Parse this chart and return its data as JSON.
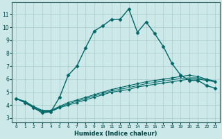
{
  "title": "",
  "xlabel": "Humidex (Indice chaleur)",
  "ylabel": "",
  "background_color": "#cce8e8",
  "grid_color": "#aacccc",
  "line_color": "#006666",
  "x_ticks": [
    0,
    1,
    2,
    3,
    4,
    5,
    6,
    7,
    8,
    9,
    10,
    11,
    12,
    13,
    14,
    15,
    16,
    17,
    18,
    19,
    20,
    21,
    22,
    23
  ],
  "y_ticks": [
    3,
    4,
    5,
    6,
    7,
    8,
    9,
    10,
    11
  ],
  "ylim": [
    2.7,
    11.9
  ],
  "xlim": [
    -0.5,
    23.5
  ],
  "series": [
    {
      "x": [
        0,
        1,
        2,
        3,
        4,
        5,
        6,
        7,
        8,
        9,
        10,
        11,
        12,
        13,
        14,
        15,
        16,
        17,
        18,
        19,
        20,
        21,
        22,
        23
      ],
      "y": [
        4.5,
        4.2,
        3.8,
        3.4,
        3.5,
        4.6,
        6.3,
        7.0,
        8.4,
        9.7,
        10.1,
        10.6,
        10.6,
        11.4,
        9.6,
        10.4,
        9.5,
        8.5,
        7.2,
        6.3,
        5.9,
        5.9,
        5.5,
        5.3
      ],
      "marker": "D",
      "markersize": 2.5,
      "linewidth": 1.0,
      "linestyle": "solid"
    },
    {
      "x": [
        0,
        1,
        2,
        3,
        4,
        5,
        6,
        7,
        8,
        9,
        10,
        11,
        12,
        13,
        14,
        15,
        16,
        17,
        18,
        19,
        20,
        21,
        22,
        23
      ],
      "y": [
        4.5,
        4.2,
        3.8,
        3.5,
        3.5,
        3.8,
        4.0,
        4.2,
        4.4,
        4.6,
        4.8,
        5.0,
        5.1,
        5.2,
        5.4,
        5.5,
        5.6,
        5.7,
        5.8,
        5.9,
        6.0,
        6.0,
        5.9,
        5.8
      ],
      "marker": "D",
      "markersize": 1.8,
      "linewidth": 0.8,
      "linestyle": "solid"
    },
    {
      "x": [
        0,
        1,
        2,
        3,
        4,
        5,
        6,
        7,
        8,
        9,
        10,
        11,
        12,
        13,
        14,
        15,
        16,
        17,
        18,
        19,
        20,
        21,
        22,
        23
      ],
      "y": [
        4.5,
        4.3,
        3.9,
        3.6,
        3.6,
        3.9,
        4.2,
        4.4,
        4.6,
        4.8,
        5.0,
        5.2,
        5.35,
        5.5,
        5.65,
        5.8,
        5.9,
        6.0,
        6.1,
        6.2,
        6.3,
        6.2,
        6.0,
        5.85
      ],
      "marker": "D",
      "markersize": 1.8,
      "linewidth": 0.8,
      "linestyle": "solid"
    },
    {
      "x": [
        0,
        1,
        2,
        3,
        4,
        5,
        6,
        7,
        8,
        9,
        10,
        11,
        12,
        13,
        14,
        15,
        16,
        17,
        18,
        19,
        20,
        21,
        22,
        23
      ],
      "y": [
        4.5,
        4.25,
        3.85,
        3.55,
        3.55,
        3.85,
        4.1,
        4.3,
        4.5,
        4.7,
        4.9,
        5.1,
        5.22,
        5.35,
        5.5,
        5.65,
        5.75,
        5.85,
        5.95,
        6.05,
        6.1,
        6.1,
        5.95,
        5.8
      ],
      "marker": null,
      "markersize": 0,
      "linewidth": 0.7,
      "linestyle": "solid"
    }
  ]
}
